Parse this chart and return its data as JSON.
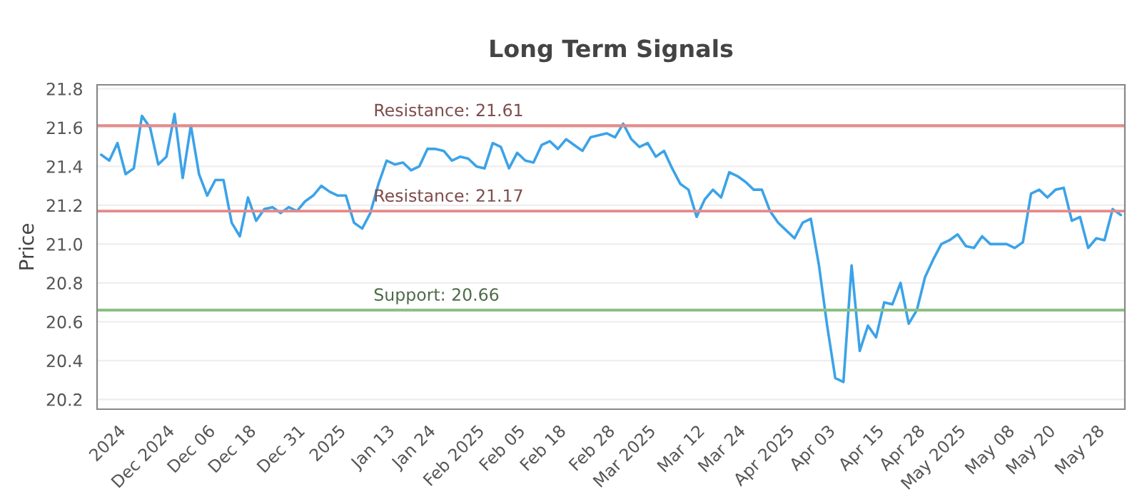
{
  "chart_data": {
    "type": "line",
    "title": "Long Term Signals",
    "ylabel": "Price",
    "categories": [
      null,
      null,
      "2024",
      null,
      null,
      null,
      null,
      null,
      "Dec 2024",
      null,
      null,
      null,
      null,
      "Dec 06",
      null,
      null,
      null,
      null,
      "Dec 18",
      null,
      null,
      null,
      null,
      null,
      "Dec 31",
      null,
      null,
      null,
      null,
      "2025",
      null,
      null,
      null,
      null,
      null,
      "Jan 13",
      null,
      null,
      null,
      null,
      "Jan 24",
      null,
      null,
      null,
      null,
      null,
      "Feb 2025",
      null,
      null,
      null,
      null,
      "Feb 05",
      null,
      null,
      null,
      null,
      "Feb 18",
      null,
      null,
      null,
      null,
      null,
      "Feb 28",
      null,
      null,
      null,
      null,
      "Mar 2025",
      null,
      null,
      null,
      null,
      null,
      "Mar 12",
      null,
      null,
      null,
      null,
      "Mar 24",
      null,
      null,
      null,
      null,
      null,
      "Apr 2025",
      null,
      null,
      null,
      null,
      "Apr 03",
      null,
      null,
      null,
      null,
      null,
      "Apr 15",
      null,
      null,
      null,
      null,
      "Apr 28",
      null,
      null,
      null,
      null,
      "May 2025",
      null,
      null,
      null,
      null,
      null,
      "May 08",
      null,
      null,
      null,
      null,
      "May 20",
      null,
      null,
      null,
      null,
      null,
      "May 28",
      null,
      null,
      null
    ],
    "series": [
      {
        "color": "#3ba3e8",
        "values": [
          21.46,
          21.43,
          21.52,
          21.36,
          21.39,
          21.66,
          21.6,
          21.41,
          21.45,
          21.67,
          21.34,
          21.61,
          21.36,
          21.25,
          21.33,
          21.33,
          21.11,
          21.04,
          21.24,
          21.12,
          21.18,
          21.19,
          21.16,
          21.19,
          21.17,
          21.22,
          21.25,
          21.3,
          21.27,
          21.25,
          21.25,
          21.11,
          21.08,
          21.16,
          21.31,
          21.43,
          21.41,
          21.42,
          21.38,
          21.4,
          21.49,
          21.49,
          21.48,
          21.43,
          21.45,
          21.44,
          21.4,
          21.39,
          21.52,
          21.5,
          21.39,
          21.47,
          21.43,
          21.42,
          21.51,
          21.53,
          21.49,
          21.54,
          21.51,
          21.48,
          21.55,
          21.56,
          21.57,
          21.55,
          21.62,
          21.54,
          21.5,
          21.52,
          21.45,
          21.48,
          21.39,
          21.31,
          21.28,
          21.14,
          21.23,
          21.28,
          21.24,
          21.37,
          21.35,
          21.32,
          21.28,
          21.28,
          21.17,
          21.11,
          21.07,
          21.03,
          21.11,
          21.13,
          20.89,
          20.58,
          20.31,
          20.29,
          20.89,
          20.45,
          20.58,
          20.52,
          20.7,
          20.69,
          20.8,
          20.59,
          20.66,
          20.83,
          20.92,
          21.0,
          21.02,
          21.05,
          20.99,
          20.98,
          21.04,
          21.0,
          21.0,
          21.0,
          20.98,
          21.01,
          21.26,
          21.28,
          21.24,
          21.28,
          21.29,
          21.12,
          21.14,
          20.98,
          21.03,
          21.02,
          21.18,
          21.15
        ]
      }
    ],
    "ylim": [
      20.15,
      21.82
    ],
    "yticks": [
      20.2,
      20.4,
      20.6,
      20.8,
      {
        "value": 21.0,
        "label": "21.0"
      },
      21.2,
      21.4,
      21.6,
      21.8
    ],
    "grid": "y",
    "legend": false,
    "marker": "none",
    "line_style": "solid",
    "ref_lines": [
      {
        "axis": "y",
        "value": 21.61,
        "label": "Resistance: 21.61",
        "color": "#e58a8a"
      },
      {
        "axis": "y",
        "value": 21.17,
        "label": "Resistance: 21.17",
        "color": "#e58a8a"
      },
      {
        "axis": "y",
        "value": 20.66,
        "label": "Support: 20.66",
        "color": "#8cc084"
      }
    ]
  }
}
